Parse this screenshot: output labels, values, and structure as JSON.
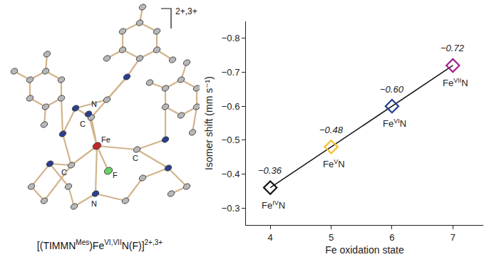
{
  "chart_data": {
    "type": "scatter",
    "x_label": "Fe oxidation state",
    "y_label": "Isomer shift (mm s⁻¹)",
    "x": [
      4,
      5,
      6,
      7
    ],
    "values": [
      -0.36,
      -0.48,
      -0.6,
      -0.72
    ],
    "value_labels": [
      "−0.36",
      "−0.48",
      "−0.60",
      "−0.72"
    ],
    "data_labels": true,
    "point_labels": [
      {
        "base": "Fe",
        "sup": "IV",
        "after": "N"
      },
      {
        "base": "Fe",
        "sup": "V",
        "after": "N"
      },
      {
        "base": "Fe",
        "sup": "VI",
        "after": "N"
      },
      {
        "base": "Fe",
        "sup": "VII",
        "after": "N"
      }
    ],
    "colors": [
      "#111111",
      "#f2c12e",
      "#1f3c8f",
      "#a3228f"
    ],
    "color": "#111111",
    "marker": "diamond-open",
    "line_style": "solid",
    "xlim": [
      3.6,
      7.5
    ],
    "xticks": [
      4,
      5,
      6,
      7
    ],
    "ylim": [
      -0.25,
      -0.85
    ],
    "yticks": [
      {
        "value": -0.3,
        "label": "−0.3"
      },
      {
        "value": -0.4,
        "label": "−0.4"
      },
      {
        "value": -0.5,
        "label": "−0.5"
      },
      {
        "value": -0.6,
        "label": "−0.6"
      },
      {
        "value": -0.7,
        "label": "−0.7"
      },
      {
        "value": -0.8,
        "label": "−0.8"
      }
    ],
    "grid": false
  },
  "structure": {
    "charge": "2+,3+",
    "atom_labels": {
      "nitride": "N",
      "metal": "Fe",
      "fluoride": "F",
      "carbene_top": "C",
      "carbene_left": "C",
      "carbene_right": "C",
      "amine": "N"
    },
    "caption": [
      {
        "text": "[(TIMMN"
      },
      {
        "text": "Mes",
        "sup": true
      },
      {
        "text": ")Fe"
      },
      {
        "text": "VI,VII",
        "sup": true
      },
      {
        "text": "N(F)]"
      },
      {
        "text": "2+,3+",
        "sup": true
      }
    ]
  }
}
